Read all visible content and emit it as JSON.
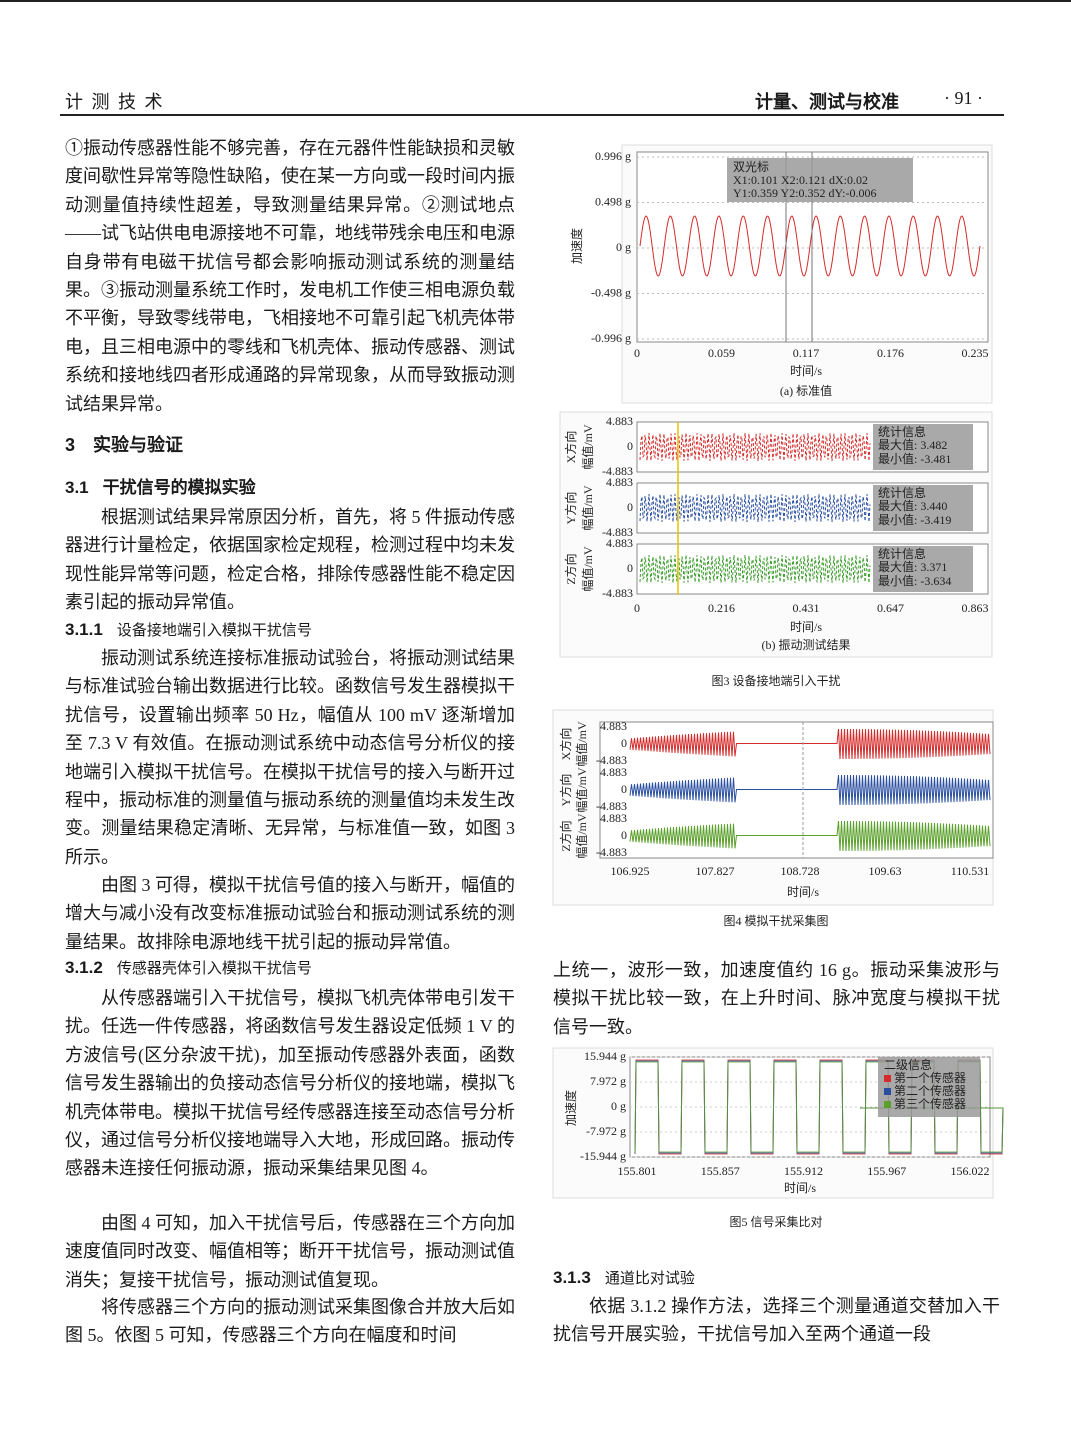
{
  "header": {
    "journal": "计 测 技 术",
    "section": "计量、测试与校准",
    "page": "· 91 ·"
  },
  "left": {
    "p1": "①振动传感器性能不够完善，存在元器件性能缺损和灵敏度间歇性异常等隐性缺陷，使在某一方向或一段时间内振动测量值持续性超差，导致测量结果异常。②测试地点——试飞站供电电源接地不可靠，地线带残余电压和电源自身带有电磁干扰信号都会影响振动测试系统的测量结果。③振动测量系统工作时，发电机工作使三相电源负载不平衡，导致零线带电，飞相接地不可靠引起飞机壳体带电，且三相电源中的零线和飞机壳体、振动传感器、测试系统和接地线四者形成通路的异常现象，从而导致振动测试结果异常。",
    "h3": {
      "number": "3",
      "title": "实验与验证"
    },
    "h31": {
      "number": "3.1",
      "title": "干扰信号的模拟实验"
    },
    "p2": "根据测试结果异常原因分析，首先，将 5 件振动传感器进行计量检定，依据国家检定规程，检测过程中均未发现性能异常等问题，检定合格，排除传感器性能不稳定因素引起的振动异常值。",
    "h311": {
      "number": "3.1.1",
      "title": "设备接地端引入模拟干扰信号"
    },
    "p3": "振动测试系统连接标准振动试验台，将振动测试结果与标准试验台输出数据进行比较。函数信号发生器模拟干扰信号，设置输出频率 50 Hz，幅值从 100 mV 逐渐增加至 7.3 V 有效值。在振动测试系统中动态信号分析仪的接地端引入模拟干扰信号。在模拟干扰信号的接入与断开过程中，振动标准的测量值与振动系统的测量值均未发生改变。测量结果稳定清晰、无异常，与标准值一致，如图 3 所示。",
    "p4": "由图 3 可得，模拟干扰信号值的接入与断开，幅值的增大与减小没有改变标准振动试验台和振动测试系统的测量结果。故排除电源地线干扰引起的振动异常值。",
    "h312": {
      "number": "3.1.2",
      "title": "传感器壳体引入模拟干扰信号"
    },
    "p5": "从传感器端引入干扰信号，模拟飞机壳体带电引发干扰。任选一件传感器，将函数信号发生器设定低频 1 V 的方波信号(区分杂波干扰)，加至振动传感器外表面，函数信号发生器输出的负接动态信号分析仪的接地端，模拟飞机壳体带电。模拟干扰信号经传感器连接至动态信号分析仪，通过信号分析仪接地端导入大地，形成回路。振动传感器未连接任何振动源，振动采集结果见图 4。",
    "p6": "由图 4 可知，加入干扰信号后，传感器在三个方向加速度值同时改变、幅值相等；断开干扰信号，振动测试值消失；复接干扰信号，振动测试值复现。",
    "p7": "将传感器三个方向的振动测试采集图像合并放大后如图 5。依图 5 可知，传感器三个方向在幅度和时间"
  },
  "right": {
    "p1": "上统一，波形一致，加速度值约 16 g。振动采集波形与模拟干扰比较一致，在上升时间、脉冲宽度与模拟干扰信号一致。",
    "h313": {
      "number": "3.1.3",
      "title": "通道比对试验"
    },
    "p2": "依据 3.1.2 操作方法，选择三个测量通道交替加入干扰信号开展实验，干扰信号加入至两个通道一段"
  },
  "figure3": {
    "a": {
      "y_label": "加速度",
      "y_ticks": [
        "0.996 g",
        "0.498 g",
        "0 g",
        "-0.498 g",
        "-0.996 g"
      ],
      "x_ticks": [
        "0",
        "0.059",
        "0.117",
        "0.176",
        "0.235"
      ],
      "x_label": "时间/s",
      "cursor": {
        "title": "双光标",
        "line1": "X1:0.101  X2:0.121  dX:0.02",
        "line2": "Y1:0.359  Y2:0.352  dY:-0.006"
      },
      "subcaption": "(a) 标准值"
    },
    "b": {
      "panels": [
        {
          "direction": "X方向",
          "unit": "幅值/mV",
          "y_ticks": [
            "4.883",
            "0",
            "-4.883"
          ],
          "stats": {
            "title": "统计信息",
            "max": "最大值: 3.482",
            "min": "最小值: -3.481"
          }
        },
        {
          "direction": "Y方向",
          "unit": "幅值/mV",
          "y_ticks": [
            "4.883",
            "0",
            "-4.883"
          ],
          "stats": {
            "title": "统计信息",
            "max": "最大值: 3.440",
            "min": "最小值: -3.419"
          }
        },
        {
          "direction": "Z方向",
          "unit": "幅值/mV",
          "y_ticks": [
            "4.883",
            "0",
            "-4.883"
          ],
          "stats": {
            "title": "统计信息",
            "max": "最大值: 3.371",
            "min": "最小值: -3.634"
          }
        }
      ],
      "x_ticks": [
        "0",
        "0.216",
        "0.431",
        "0.647",
        "0.863"
      ],
      "x_label": "时间/s",
      "subcaption": "(b) 振动测试结果"
    },
    "caption": "图3   设备接地端引入干扰"
  },
  "figure4": {
    "panels": [
      {
        "direction": "X方向",
        "unit": "幅值/mV",
        "y_ticks": [
          "4.883",
          "0",
          "-4.883"
        ]
      },
      {
        "direction": "Y方向",
        "unit": "幅值/mV",
        "y_ticks": [
          "4.883",
          "0",
          "-4.883"
        ]
      },
      {
        "direction": "Z方向",
        "unit": "幅值/mV",
        "y_ticks": [
          "4.883",
          "0",
          "-4.883"
        ]
      }
    ],
    "x_ticks": [
      "106.925",
      "107.827",
      "108.728",
      "109.63",
      "110.531"
    ],
    "x_label": "时间/s",
    "caption": "图4   模拟干扰采集图"
  },
  "figure5": {
    "y_label": "加速度",
    "y_ticks": [
      "15.944 g",
      "7.972 g",
      "0 g",
      "-7.972 g",
      "-15.944 g"
    ],
    "x_ticks": [
      "155.801",
      "155.857",
      "155.912",
      "155.967",
      "156.022"
    ],
    "x_label": "时间/s",
    "legend": {
      "title": "二级信息",
      "items": [
        "第一个传感器",
        "第二个传感器",
        "第三个传感器"
      ]
    },
    "caption": "图5   信号采集比对"
  }
}
